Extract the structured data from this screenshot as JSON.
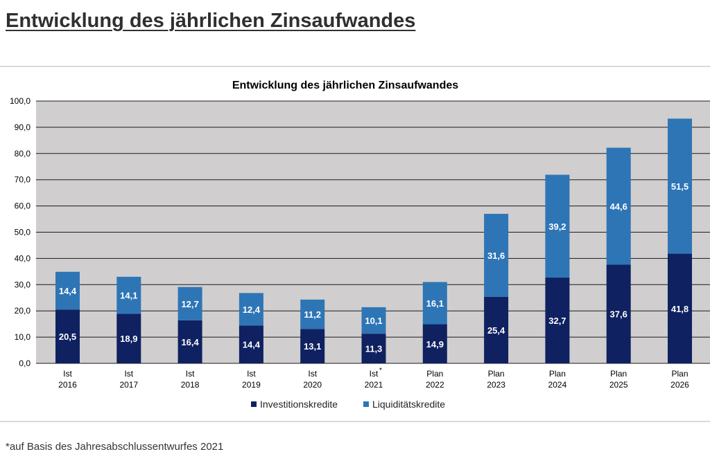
{
  "page": {
    "title": "Entwicklung des jährlichen Zinsaufwandes",
    "footnote": "*auf Basis des Jahresabschlussentwurfes 2021"
  },
  "colors": {
    "investition": "#0f2160",
    "liquiditaet": "#2e75b6",
    "plot_bg": "#d0cece",
    "gridline": "#1a1a1a"
  },
  "chart_data": {
    "type": "bar",
    "stacked": true,
    "title": "Entwicklung des jährlichen Zinsaufwandes",
    "categories": [
      {
        "line1": "Ist",
        "line2": "2016",
        "marker": ""
      },
      {
        "line1": "Ist",
        "line2": "2017",
        "marker": ""
      },
      {
        "line1": "Ist",
        "line2": "2018",
        "marker": ""
      },
      {
        "line1": "Ist",
        "line2": "2019",
        "marker": ""
      },
      {
        "line1": "Ist",
        "line2": "2020",
        "marker": ""
      },
      {
        "line1": "Ist",
        "line2": "2021",
        "marker": "*"
      },
      {
        "line1": "Plan",
        "line2": "2022",
        "marker": ""
      },
      {
        "line1": "Plan",
        "line2": "2023",
        "marker": ""
      },
      {
        "line1": "Plan",
        "line2": "2024",
        "marker": ""
      },
      {
        "line1": "Plan",
        "line2": "2025",
        "marker": ""
      },
      {
        "line1": "Plan",
        "line2": "2026",
        "marker": ""
      }
    ],
    "series": [
      {
        "name": "Investitionskredite",
        "values": [
          20.5,
          18.9,
          16.4,
          14.4,
          13.1,
          11.3,
          14.9,
          25.4,
          32.7,
          37.6,
          41.8
        ],
        "labels": [
          "20,5",
          "18,9",
          "16,4",
          "14,4",
          "13,1",
          "11,3",
          "14,9",
          "25,4",
          "32,7",
          "37,6",
          "41,8"
        ]
      },
      {
        "name": "Liquiditätskredite",
        "values": [
          14.4,
          14.1,
          12.7,
          12.4,
          11.2,
          10.1,
          16.1,
          31.6,
          39.2,
          44.6,
          51.5
        ],
        "labels": [
          "14,4",
          "14,1",
          "12,7",
          "12,4",
          "11,2",
          "10,1",
          "16,1",
          "31,6",
          "39,2",
          "44,6",
          "51,5"
        ]
      }
    ],
    "ylim": [
      0,
      100
    ],
    "yticks": [
      "0,0",
      "10,0",
      "20,0",
      "30,0",
      "40,0",
      "50,0",
      "60,0",
      "70,0",
      "80,0",
      "90,0",
      "100,0"
    ],
    "grid": true,
    "legend_position": "bottom"
  }
}
